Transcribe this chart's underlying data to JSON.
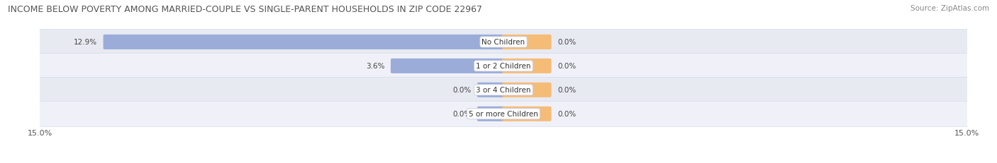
{
  "title": "INCOME BELOW POVERTY AMONG MARRIED-COUPLE VS SINGLE-PARENT HOUSEHOLDS IN ZIP CODE 22967",
  "source": "Source: ZipAtlas.com",
  "categories": [
    "No Children",
    "1 or 2 Children",
    "3 or 4 Children",
    "5 or more Children"
  ],
  "married_values": [
    12.9,
    3.6,
    0.0,
    0.0
  ],
  "single_values": [
    0.0,
    0.0,
    0.0,
    0.0
  ],
  "xlim": 15.0,
  "married_color": "#9bacd8",
  "single_color": "#f5bc78",
  "bar_height": 0.52,
  "row_bg_even": "#e8eaf2",
  "row_bg_odd": "#f0f1f8",
  "title_fontsize": 9.0,
  "source_fontsize": 7.5,
  "label_fontsize": 7.5,
  "category_fontsize": 7.5,
  "axis_label_fontsize": 8,
  "legend_fontsize": 7.5,
  "background_color": "#ffffff",
  "row_border_color": "#d0d4e8",
  "min_bar_width": 0.8,
  "single_bar_width": 1.5
}
